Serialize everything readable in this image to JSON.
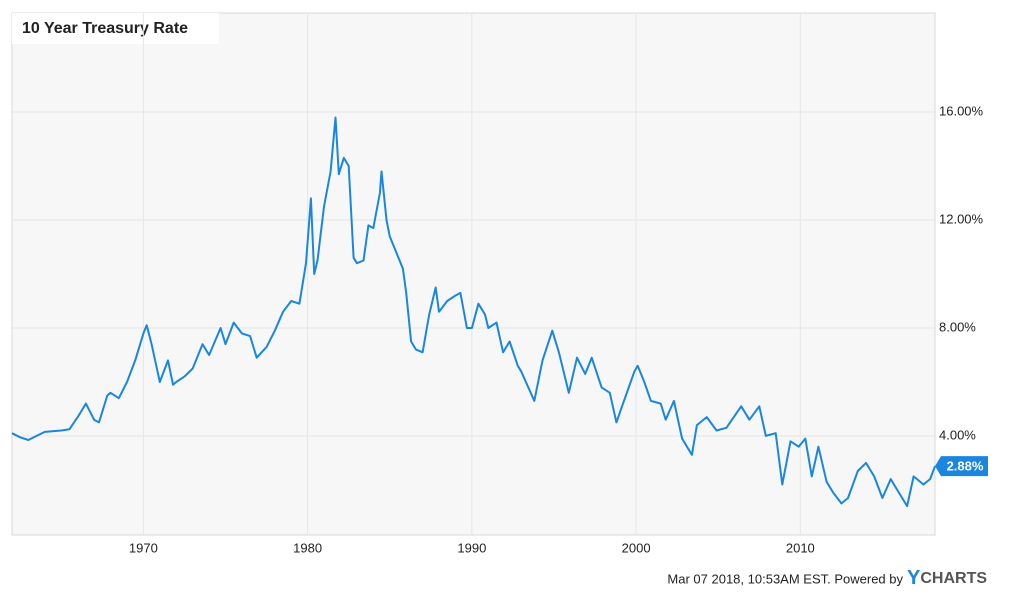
{
  "chart_data": {
    "type": "line",
    "title": "10 Year Treasury Rate",
    "x": [
      1962.0,
      1962.5,
      1963.0,
      1963.5,
      1964.0,
      1965.0,
      1965.5,
      1966.0,
      1966.5,
      1967.0,
      1967.3,
      1967.8,
      1968.0,
      1968.5,
      1969.0,
      1969.5,
      1970.0,
      1970.2,
      1970.5,
      1971.0,
      1971.5,
      1971.8,
      1972.0,
      1972.5,
      1973.0,
      1973.6,
      1974.0,
      1974.7,
      1975.0,
      1975.5,
      1976.0,
      1976.5,
      1976.9,
      1977.5,
      1978.0,
      1978.5,
      1979.0,
      1979.5,
      1979.9,
      1980.2,
      1980.4,
      1980.6,
      1981.0,
      1981.4,
      1981.7,
      1981.9,
      1982.2,
      1982.5,
      1982.8,
      1983.0,
      1983.4,
      1983.7,
      1984.0,
      1984.4,
      1984.5,
      1984.8,
      1985.0,
      1985.4,
      1985.8,
      1986.0,
      1986.3,
      1986.6,
      1987.0,
      1987.4,
      1987.8,
      1988.0,
      1988.5,
      1989.0,
      1989.3,
      1989.7,
      1990.0,
      1990.4,
      1990.8,
      1991.0,
      1991.5,
      1991.9,
      1992.3,
      1992.8,
      1993.0,
      1993.8,
      1994.3,
      1994.9,
      1995.3,
      1995.9,
      1996.4,
      1996.9,
      1997.3,
      1997.9,
      1998.4,
      1998.8,
      1999.2,
      1999.9,
      2000.1,
      2000.5,
      2000.9,
      2001.5,
      2001.8,
      2002.3,
      2002.8,
      2003.4,
      2003.7,
      2004.3,
      2004.9,
      2005.5,
      2006.4,
      2006.9,
      2007.5,
      2007.9,
      2008.5,
      2008.9,
      2009.4,
      2009.9,
      2010.3,
      2010.7,
      2011.1,
      2011.6,
      2012.0,
      2012.5,
      2012.9,
      2013.5,
      2014.0,
      2014.5,
      2015.0,
      2015.5,
      2016.0,
      2016.5,
      2016.9,
      2017.5,
      2017.9,
      2018.2
    ],
    "series": [
      {
        "name": "10 Year Treasury Rate",
        "color": "#1a86e0",
        "values": [
          4.1,
          3.95,
          3.85,
          4.0,
          4.15,
          4.2,
          4.25,
          4.7,
          5.2,
          4.6,
          4.5,
          5.5,
          5.6,
          5.4,
          6.0,
          6.8,
          7.8,
          8.1,
          7.4,
          6.0,
          6.8,
          5.9,
          6.0,
          6.2,
          6.5,
          7.4,
          7.0,
          8.0,
          7.4,
          8.2,
          7.8,
          7.7,
          6.9,
          7.3,
          7.9,
          8.6,
          9.0,
          8.9,
          10.4,
          12.8,
          10.0,
          10.5,
          12.5,
          13.8,
          15.8,
          13.7,
          14.3,
          14.0,
          10.6,
          10.4,
          10.5,
          11.8,
          11.7,
          13.0,
          13.8,
          12.0,
          11.4,
          10.8,
          10.2,
          9.3,
          7.5,
          7.2,
          7.1,
          8.5,
          9.5,
          8.6,
          9.0,
          9.2,
          9.3,
          8.0,
          8.0,
          8.9,
          8.5,
          8.0,
          8.2,
          7.1,
          7.5,
          6.6,
          6.4,
          5.3,
          6.8,
          7.9,
          7.1,
          5.6,
          6.9,
          6.3,
          6.9,
          5.8,
          5.6,
          4.5,
          5.2,
          6.4,
          6.6,
          6.0,
          5.3,
          5.2,
          4.6,
          5.3,
          3.9,
          3.3,
          4.4,
          4.7,
          4.2,
          4.3,
          5.1,
          4.6,
          5.1,
          4.0,
          4.1,
          2.2,
          3.8,
          3.6,
          3.9,
          2.5,
          3.6,
          2.3,
          1.9,
          1.5,
          1.7,
          2.7,
          3.0,
          2.5,
          1.7,
          2.4,
          1.9,
          1.4,
          2.5,
          2.2,
          2.4,
          2.88
        ],
        "value_labels": [
          null,
          null,
          null,
          null,
          null,
          null,
          null,
          null,
          null,
          null,
          null,
          null,
          null,
          null,
          null,
          null,
          null,
          null,
          null,
          null,
          null,
          null,
          null,
          null,
          null,
          null,
          null,
          null,
          null,
          null,
          null,
          null,
          null,
          null,
          null,
          null,
          null,
          null,
          null,
          null,
          null,
          null,
          null,
          null,
          null,
          null,
          null,
          null,
          null,
          null,
          null,
          null,
          null,
          null,
          null,
          null,
          null,
          null,
          null,
          null,
          null,
          null,
          null,
          null,
          null,
          null,
          null,
          null,
          null,
          null,
          null,
          null,
          null,
          null,
          null,
          null,
          null,
          null,
          null,
          null,
          null,
          null,
          null,
          null,
          null,
          null,
          null,
          null,
          null,
          null,
          null,
          null,
          null,
          null,
          null,
          null,
          null,
          null,
          null,
          null,
          null,
          null,
          null,
          null,
          null,
          null,
          null,
          null,
          null,
          null,
          null,
          null,
          null,
          null,
          null,
          null,
          null,
          null,
          null,
          null,
          null,
          null,
          null,
          null,
          null,
          null,
          null,
          null,
          null,
          "2.88%"
        ]
      }
    ],
    "xlim": [
      1962.0,
      2018.2
    ],
    "xticks": [
      1970,
      1980,
      1990,
      2000,
      2010
    ],
    "ylim": [
      0.33,
      19.67
    ],
    "yticks": [
      {
        "value": 4,
        "label": "4.00%"
      },
      {
        "value": 8,
        "label": "8.00%"
      },
      {
        "value": 12,
        "label": "12.00%"
      },
      {
        "value": 16,
        "label": "16.00%"
      }
    ],
    "grid": true,
    "footer": "Mar 07 2018, 10:53AM EST. Powered by",
    "brand": [
      "Y",
      "CHARTS"
    ]
  }
}
